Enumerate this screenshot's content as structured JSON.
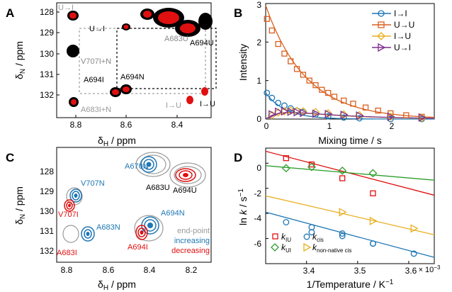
{
  "panels": {
    "A": {
      "label": "A",
      "xlabel_main": "δ",
      "xlabel_sub": "H",
      "xlabel_unit": " / ppm",
      "ylabel_main": "δ",
      "ylabel_sub": "N",
      "ylabel_unit": " / ppm",
      "xticks": [
        "8.8",
        "8.6",
        "8.4"
      ],
      "yticks": [
        "128",
        "129",
        "130",
        "131",
        "132"
      ],
      "annotations": [
        "U→I",
        "U→I",
        "A683U",
        "A694U",
        "V707I+N",
        "A694I",
        "A694N",
        "A683I+N",
        "I→U",
        "I→U"
      ]
    },
    "B": {
      "label": "B",
      "xlabel": "Mixing time / s",
      "ylabel": "Intensity",
      "xticks": [
        "0",
        "1",
        "2"
      ],
      "yticks": [
        "0",
        "1",
        "2",
        "3"
      ],
      "legend": [
        "I→I",
        "U→U",
        "I→U",
        "U→I"
      ]
    },
    "C": {
      "label": "C",
      "xlabel_main": "δ",
      "xlabel_sub": "H",
      "xlabel_unit": " / ppm",
      "ylabel_main": "δ",
      "ylabel_sub": "N",
      "ylabel_unit": " / ppm",
      "xticks": [
        "8.8",
        "8.6",
        "8.4",
        "8.2"
      ],
      "yticks": [
        "128",
        "129",
        "130",
        "131",
        "132"
      ],
      "annotations": [
        "A670N",
        "V707N",
        "A683U",
        "A694U",
        "V707I",
        "A694N",
        "A683N",
        "A683I",
        "A694I"
      ],
      "legend": [
        "end-point",
        "increasing",
        "decreasing"
      ]
    },
    "D": {
      "label": "D",
      "xlabel": "1/Temperature / K",
      "xlabel_sup": "−1",
      "ylabel_a": "ln ",
      "ylabel_b": "k",
      "ylabel_c": " / s",
      "ylabel_sup": "−1",
      "xticks": [
        "3.4",
        "3.5",
        "3.6"
      ],
      "yticks": [
        "0",
        "-2",
        "-4",
        "-6"
      ],
      "xscale_exp": "× 10",
      "xscale_exp_sup": "−3",
      "legend": [
        {
          "k": "k",
          "sub": "IU"
        },
        {
          "k": "k",
          "sub": "UI"
        },
        {
          "k": "k",
          "sub": "cis"
        },
        {
          "k": "k",
          "sub": "non-native cis"
        }
      ]
    }
  },
  "colors": {
    "blue": "#1f77b4",
    "orange": "#d95f1e",
    "gold": "#e8b020",
    "purple": "#7e2f8e",
    "red": "#e01010",
    "green": "#2e9e2e",
    "grey": "#9a9a9a"
  },
  "chart_data": [
    {
      "type": "line",
      "panel": "B",
      "xlabel": "Mixing time / s",
      "ylabel": "Intensity",
      "xlim": [
        0,
        2.7
      ],
      "ylim": [
        0,
        3
      ],
      "series": [
        {
          "name": "I→I",
          "x": [
            0.02,
            0.1,
            0.2,
            0.3,
            0.4,
            0.5,
            0.6,
            0.8,
            1.0,
            1.25,
            1.5,
            2.0,
            2.5
          ],
          "values": [
            0.68,
            0.55,
            0.42,
            0.35,
            0.28,
            0.22,
            0.18,
            0.12,
            0.07,
            0.04,
            0.02,
            0.0,
            0.0
          ]
        },
        {
          "name": "U→U",
          "x": [
            0.02,
            0.1,
            0.2,
            0.3,
            0.4,
            0.5,
            0.6,
            0.7,
            0.8,
            0.9,
            1.0,
            1.1,
            1.25,
            1.4,
            1.6,
            1.8,
            2.0,
            2.25,
            2.5
          ],
          "values": [
            2.6,
            2.3,
            1.95,
            1.7,
            1.5,
            1.3,
            1.15,
            1.0,
            0.88,
            0.76,
            0.68,
            0.58,
            0.48,
            0.4,
            0.3,
            0.22,
            0.15,
            0.1,
            0.06
          ]
        },
        {
          "name": "I→U",
          "x": [
            0.1,
            0.2,
            0.3,
            0.4,
            0.5,
            0.6,
            0.8,
            1.0,
            1.25,
            1.5,
            2.0,
            2.5
          ],
          "values": [
            0.1,
            0.17,
            0.2,
            0.22,
            0.21,
            0.2,
            0.18,
            0.15,
            0.12,
            0.1,
            0.06,
            0.03
          ]
        },
        {
          "name": "U→I",
          "x": [
            0.1,
            0.2,
            0.3,
            0.4,
            0.5,
            0.6,
            0.8,
            1.0,
            1.25,
            1.5,
            2.0,
            2.5
          ],
          "values": [
            0.12,
            0.19,
            0.2,
            0.19,
            0.18,
            0.16,
            0.14,
            0.13,
            0.11,
            0.09,
            0.06,
            0.04
          ]
        }
      ],
      "fits": {
        "I→I": {
          "a": 0.68,
          "k": 3.2
        },
        "U→U": {
          "a": 2.95,
          "k": 1.55
        },
        "I→U": {
          "a": 0.34,
          "k1": 1.1,
          "k2": 4.5
        },
        "U→I": {
          "a": 0.32,
          "k1": 1.0,
          "k2": 5.0
        }
      }
    },
    {
      "type": "scatter",
      "panel": "D",
      "xlabel": "1/Temperature / K−1",
      "ylabel": "ln k / s−1",
      "xlim": [
        3.32,
        3.65
      ],
      "ylim": [
        -8,
        1.2
      ],
      "series": [
        {
          "name": "kIU",
          "x": [
            3.36,
            3.41,
            3.47,
            3.53
          ],
          "values": [
            0.4,
            -0.1,
            -1.2,
            -2.4
          ],
          "fit": [
            [
              3.32,
              0.95
            ],
            [
              3.65,
              -2.55
            ]
          ]
        },
        {
          "name": "kUI",
          "x": [
            3.36,
            3.41,
            3.47,
            3.53
          ],
          "values": [
            -0.4,
            -0.3,
            -0.6,
            -0.8
          ],
          "fit": [
            [
              3.32,
              -0.2
            ],
            [
              3.65,
              -1.35
            ]
          ]
        },
        {
          "name": "kcis",
          "x": [
            3.36,
            3.41,
            3.41,
            3.47,
            3.47,
            3.53,
            3.53,
            3.61
          ],
          "values": [
            -4.7,
            -5.1,
            -5.5,
            -5.6,
            -5.8,
            -6.4,
            -6.4,
            -7.2
          ],
          "fit": [
            [
              3.32,
              -3.9
            ],
            [
              3.65,
              -7.5
            ]
          ]
        },
        {
          "name": "knon-native cis",
          "x": [
            3.47,
            3.53,
            3.61
          ],
          "values": [
            -3.9,
            -4.6,
            -5.2
          ],
          "fit": [
            [
              3.32,
              -2.6
            ],
            [
              3.65,
              -5.7
            ]
          ]
        }
      ]
    }
  ]
}
